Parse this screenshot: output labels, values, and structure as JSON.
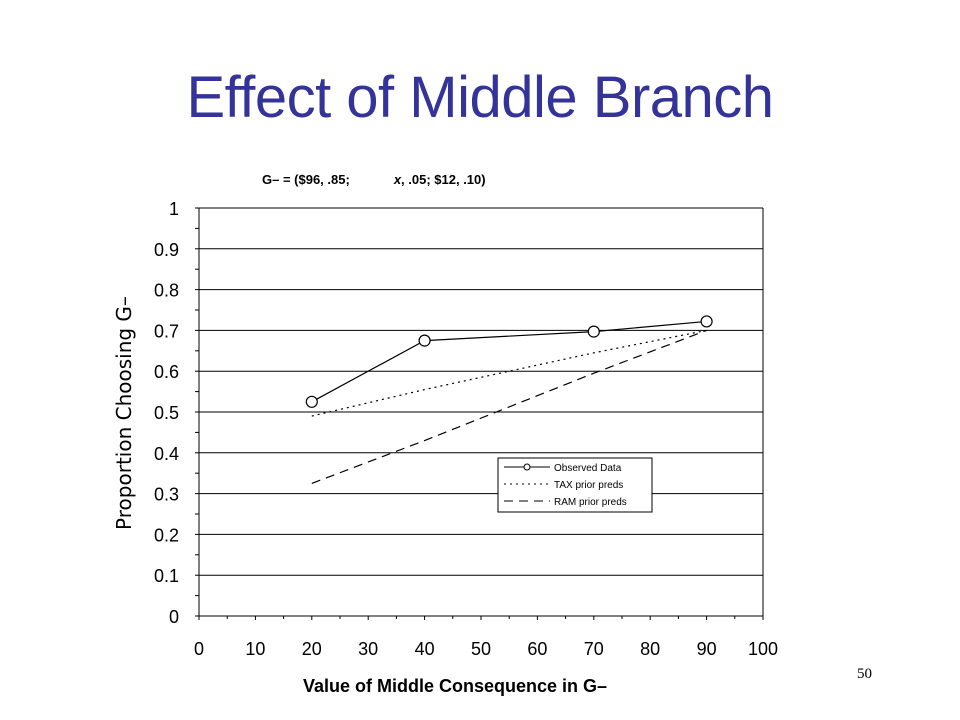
{
  "slide": {
    "title": "Effect of Middle Branch",
    "number": "50"
  },
  "chart_data": {
    "type": "line",
    "subtitle_part1": "G– = ($96, .85;",
    "subtitle_italic": "x",
    "subtitle_part2": ", .05; $12, .10)",
    "xlabel": "Value of Middle Consequence in G–",
    "ylabel": "Proportion Choosing G–",
    "xlim": [
      0,
      100
    ],
    "ylim": [
      0,
      1
    ],
    "x_ticks": [
      "0",
      "10",
      "20",
      "30",
      "40",
      "50",
      "60",
      "70",
      "80",
      "90",
      "100"
    ],
    "y_ticks": [
      "0",
      "0.1",
      "0.2",
      "0.3",
      "0.4",
      "0.5",
      "0.6",
      "0.7",
      "0.8",
      "0.9",
      "1"
    ],
    "grid": "horizontal",
    "legend_position": "lower-right",
    "series": [
      {
        "name": "Observed Data",
        "style": "solid-circles",
        "x": [
          20,
          40,
          70,
          90
        ],
        "y": [
          0.525,
          0.675,
          0.697,
          0.722
        ]
      },
      {
        "name": "TAX prior preds",
        "style": "dotted",
        "x": [
          20,
          40,
          70,
          90
        ],
        "y": [
          0.49,
          0.555,
          0.645,
          0.7
        ]
      },
      {
        "name": "RAM prior preds",
        "style": "dashed",
        "x": [
          20,
          40,
          70,
          90
        ],
        "y": [
          0.325,
          0.43,
          0.595,
          0.7
        ]
      }
    ]
  }
}
